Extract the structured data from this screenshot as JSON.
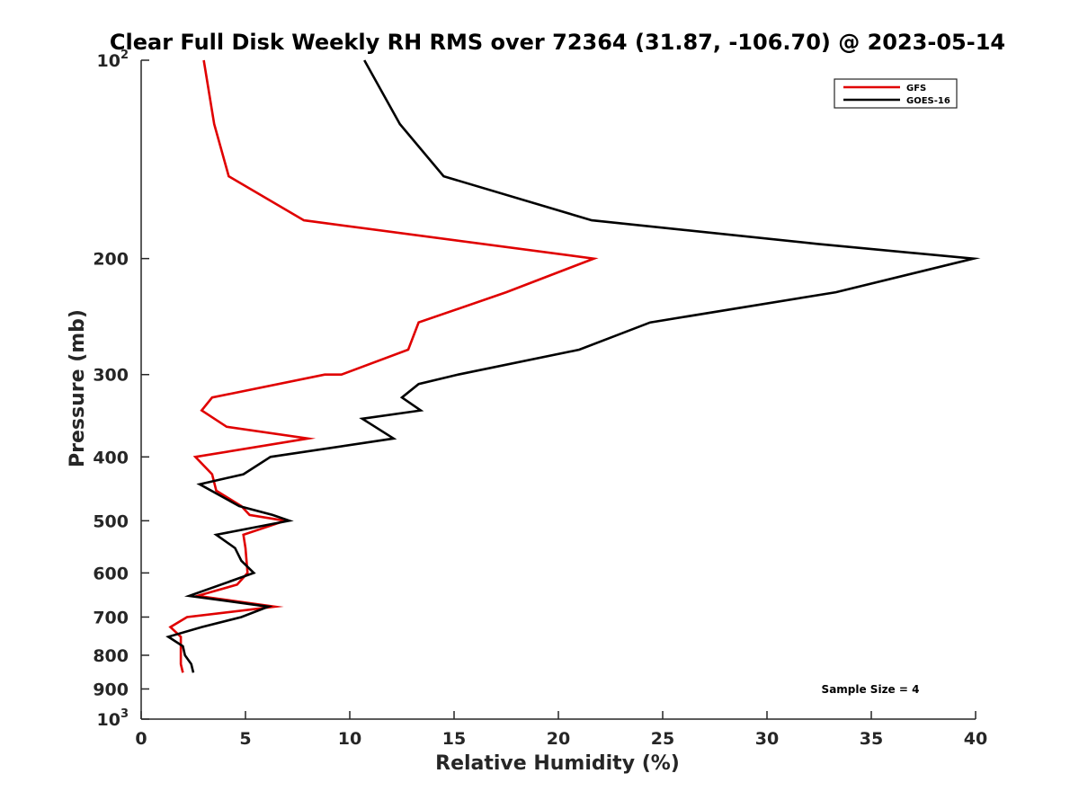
{
  "chart_data": {
    "type": "line",
    "title": "Clear Full Disk Weekly RH RMS over 72364 (31.87, -106.70) @ 2023-05-14",
    "xlabel": "Relative Humidity (%)",
    "ylabel": "Pressure (mb)",
    "xlim": [
      0,
      40
    ],
    "ylim": [
      100,
      1000
    ],
    "y_scale": "log",
    "y_reversed": true,
    "x_ticks": [
      0,
      5,
      10,
      15,
      20,
      25,
      30,
      35,
      40
    ],
    "x_tick_labels": [
      "0",
      "5",
      "10",
      "15",
      "20",
      "25",
      "30",
      "35",
      "40"
    ],
    "y_ticks": [
      100,
      200,
      300,
      400,
      500,
      600,
      700,
      800,
      900,
      1000
    ],
    "y_tick_labels": [
      {
        "base": "10",
        "exp": "2"
      },
      {
        "base": "200",
        "exp": ""
      },
      {
        "base": "300",
        "exp": ""
      },
      {
        "base": "400",
        "exp": ""
      },
      {
        "base": "500",
        "exp": ""
      },
      {
        "base": "600",
        "exp": ""
      },
      {
        "base": "700",
        "exp": ""
      },
      {
        "base": "800",
        "exp": ""
      },
      {
        "base": "900",
        "exp": ""
      },
      {
        "base": "10",
        "exp": "3"
      }
    ],
    "grid": false,
    "legend_position": "top-right",
    "annotation": "Sample Size = 4",
    "series": [
      {
        "name": "GFS",
        "color": "#e00000",
        "points": [
          [
            3.0,
            100
          ],
          [
            3.5,
            125
          ],
          [
            4.2,
            150
          ],
          [
            7.8,
            175
          ],
          [
            21.7,
            200
          ],
          [
            17.5,
            225
          ],
          [
            13.3,
            250
          ],
          [
            12.8,
            275
          ],
          [
            9.6,
            300
          ],
          [
            8.8,
            300
          ],
          [
            3.4,
            325
          ],
          [
            2.9,
            340
          ],
          [
            4.1,
            360
          ],
          [
            8.0,
            375
          ],
          [
            2.6,
            400
          ],
          [
            3.4,
            425
          ],
          [
            3.6,
            450
          ],
          [
            4.8,
            475
          ],
          [
            5.2,
            490
          ],
          [
            6.9,
            500
          ],
          [
            4.9,
            525
          ],
          [
            5.0,
            550
          ],
          [
            5.1,
            600
          ],
          [
            4.6,
            625
          ],
          [
            2.7,
            650
          ],
          [
            6.4,
            675
          ],
          [
            2.2,
            700
          ],
          [
            1.4,
            725
          ],
          [
            1.9,
            750
          ],
          [
            1.9,
            775
          ],
          [
            1.9,
            800
          ],
          [
            1.9,
            825
          ],
          [
            2.0,
            850
          ]
        ]
      },
      {
        "name": "GOES-16",
        "color": "#000000",
        "points": [
          [
            10.7,
            100
          ],
          [
            12.4,
            125
          ],
          [
            14.5,
            150
          ],
          [
            21.6,
            175
          ],
          [
            32.4,
            190
          ],
          [
            39.9,
            200
          ],
          [
            33.3,
            225
          ],
          [
            24.4,
            250
          ],
          [
            21.0,
            275
          ],
          [
            15.2,
            300
          ],
          [
            13.3,
            310
          ],
          [
            12.5,
            325
          ],
          [
            13.4,
            340
          ],
          [
            10.6,
            350
          ],
          [
            12.1,
            375
          ],
          [
            6.2,
            400
          ],
          [
            4.9,
            425
          ],
          [
            2.8,
            440
          ],
          [
            4.7,
            475
          ],
          [
            6.3,
            490
          ],
          [
            7.1,
            500
          ],
          [
            3.6,
            525
          ],
          [
            4.5,
            550
          ],
          [
            4.8,
            575
          ],
          [
            5.4,
            600
          ],
          [
            2.3,
            650
          ],
          [
            6.1,
            675
          ],
          [
            4.8,
            700
          ],
          [
            2.9,
            725
          ],
          [
            1.3,
            750
          ],
          [
            2.0,
            775
          ],
          [
            2.1,
            800
          ],
          [
            2.4,
            825
          ],
          [
            2.5,
            850
          ]
        ]
      }
    ]
  }
}
